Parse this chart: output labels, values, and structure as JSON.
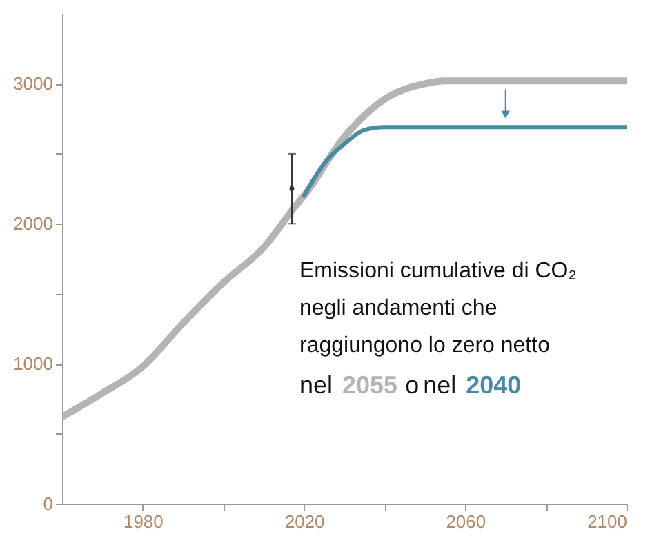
{
  "chart_data": {
    "type": "line",
    "x": [
      1960,
      1970,
      1980,
      1990,
      2000,
      2010,
      2018,
      2020,
      2030,
      2040,
      2050,
      2055,
      2100
    ],
    "series": [
      {
        "color": "#b4b4b4",
        "values": [
          620,
          790,
          980,
          1290,
          1580,
          1830,
          2130,
          2200,
          2620,
          2890,
          3000,
          3020,
          3020
        ]
      },
      {
        "color": "#4a8aa3",
        "x": [
          2020,
          2025,
          2030,
          2035,
          2040,
          2100
        ],
        "values": [
          2200,
          2430,
          2570,
          2670,
          2690,
          2690
        ]
      },
      {
        "type": "scatter",
        "marker": "circle",
        "x": [
          2017
        ],
        "values": [
          2250
        ],
        "errors": [
          [
            2000,
            2500
          ]
        ],
        "color": "#333333"
      }
    ],
    "xlim": [
      1960,
      2100
    ],
    "xticks": [
      1980,
      {
        "value": 2000,
        "label": null
      },
      2020,
      {
        "value": 2040,
        "label": null
      },
      2060,
      {
        "value": 2080,
        "label": null
      },
      2100
    ],
    "ylim": [
      0,
      3500
    ],
    "yticks": [
      0,
      {
        "value": 500,
        "label": null
      },
      1000,
      {
        "value": 1500,
        "label": null
      },
      2000,
      {
        "value": 2500,
        "label": null
      },
      3000
    ],
    "annotations": [
      "Emissioni cumulative di CO₂",
      "negli andamenti che",
      "raggiungono lo zero netto",
      "nel 2055 o nel 2040"
    ],
    "grid": false
  }
}
